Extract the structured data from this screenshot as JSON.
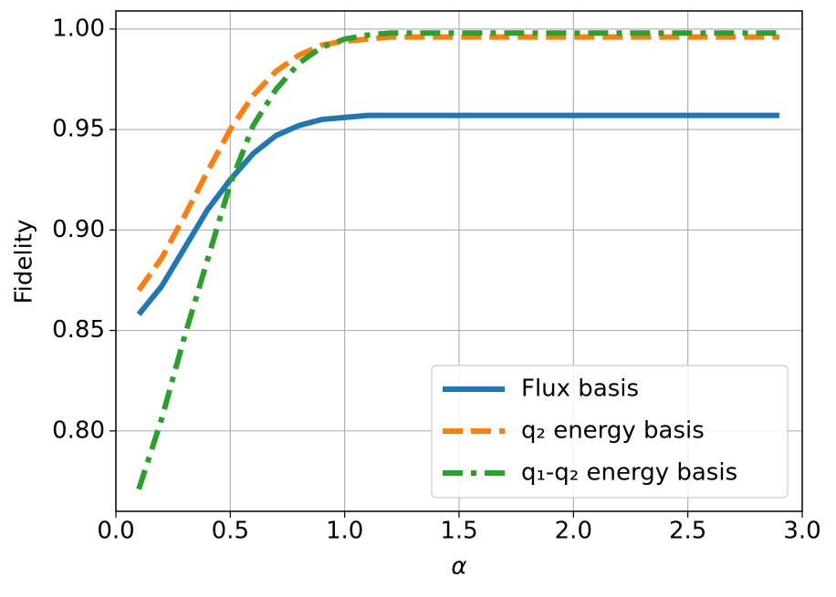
{
  "chart_data": {
    "type": "line",
    "xlabel": "α",
    "ylabel": "Fidelity",
    "x": [
      0.1,
      0.2,
      0.3,
      0.4,
      0.5,
      0.6,
      0.7,
      0.8,
      0.9,
      1.0,
      1.1,
      1.2,
      1.3,
      1.4,
      1.5,
      1.6,
      1.7,
      1.8,
      1.9,
      2.0,
      2.1,
      2.2,
      2.3,
      2.4,
      2.5,
      2.6,
      2.7,
      2.8,
      2.9
    ],
    "series": [
      {
        "name": "Flux basis",
        "color": "#1f77b4",
        "linestyle": "solid",
        "values": [
          0.858,
          0.872,
          0.891,
          0.91,
          0.925,
          0.938,
          0.947,
          0.952,
          0.955,
          0.956,
          0.957,
          0.957,
          0.957,
          0.957,
          0.957,
          0.957,
          0.957,
          0.957,
          0.957,
          0.957,
          0.957,
          0.957,
          0.957,
          0.957,
          0.957,
          0.957,
          0.957,
          0.957,
          0.957
        ]
      },
      {
        "name": "q₂ energy basis",
        "color": "#ff7f0e",
        "linestyle": "dashed",
        "values": [
          0.87,
          0.886,
          0.907,
          0.929,
          0.95,
          0.967,
          0.979,
          0.987,
          0.992,
          0.994,
          0.995,
          0.996,
          0.996,
          0.996,
          0.996,
          0.996,
          0.996,
          0.996,
          0.996,
          0.996,
          0.996,
          0.996,
          0.996,
          0.996,
          0.996,
          0.996,
          0.996,
          0.996,
          0.996
        ]
      },
      {
        "name": "q₁-q₂ energy basis",
        "color": "#2ca02c",
        "linestyle": "dashdot",
        "values": [
          0.771,
          0.806,
          0.847,
          0.885,
          0.923,
          0.952,
          0.97,
          0.983,
          0.991,
          0.995,
          0.997,
          0.998,
          0.998,
          0.998,
          0.998,
          0.998,
          0.998,
          0.998,
          0.998,
          0.998,
          0.998,
          0.998,
          0.998,
          0.998,
          0.998,
          0.998,
          0.998,
          0.998,
          0.998
        ]
      }
    ],
    "xlim": [
      0,
      3.0
    ],
    "xticks": [
      {
        "value": 0,
        "label": "0.0"
      },
      0.5,
      {
        "value": 1,
        "label": "1.0"
      },
      1.5,
      {
        "value": 2,
        "label": "2.0"
      },
      2.5,
      {
        "value": 3,
        "label": "3.0"
      }
    ],
    "ylim": [
      0.76,
      1.009
    ],
    "yticks": [
      {
        "value": 0.8,
        "label": "0.80"
      },
      0.85,
      {
        "value": 0.9,
        "label": "0.90"
      },
      0.95,
      {
        "value": 1,
        "label": "1.00"
      }
    ],
    "grid": true,
    "legend": "lower right"
  }
}
